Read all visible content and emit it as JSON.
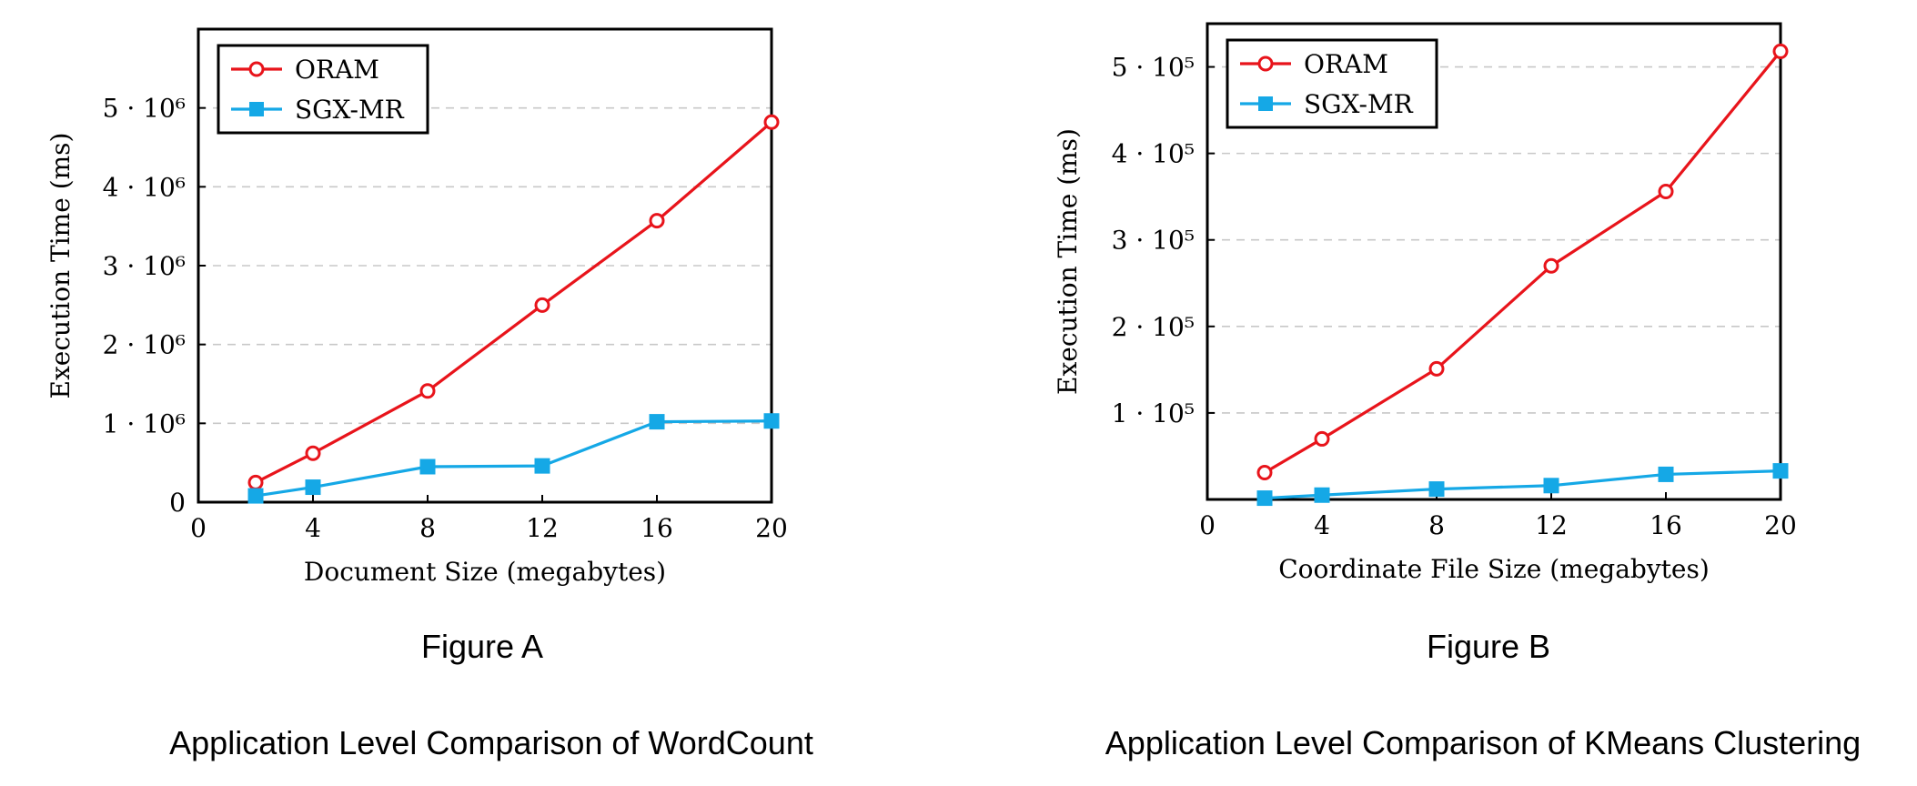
{
  "chart_data": [
    {
      "type": "line",
      "figure_label": "Figure A",
      "caption": "Application Level Comparison of WordCount",
      "xlabel": "Document Size (megabytes)",
      "ylabel": "Execution Time (ms)",
      "x_ticks": [
        "0",
        "4",
        "8",
        "12",
        "16",
        "20"
      ],
      "y_ticks": [
        {
          "value": 0,
          "label": "0"
        },
        {
          "value": 1000000,
          "label": "1 · 10⁶"
        },
        {
          "value": 2000000,
          "label": "2 · 10⁶"
        },
        {
          "value": 3000000,
          "label": "3 · 10⁶"
        },
        {
          "value": 4000000,
          "label": "4 · 10⁶"
        },
        {
          "value": 5000000,
          "label": "5 · 10⁶"
        }
      ],
      "xlim": [
        0,
        20
      ],
      "ylim": [
        0,
        6000000
      ],
      "grid": "horizontal dashed",
      "legend_position": "top-left",
      "x": [
        2,
        4,
        8,
        12,
        16,
        20
      ],
      "series": [
        {
          "name": "ORAM",
          "color": "#e8141b",
          "marker": "circle",
          "values": [
            250000,
            620000,
            1410000,
            2500000,
            3570000,
            4820000
          ]
        },
        {
          "name": "SGX-MR",
          "color": "#15a8e6",
          "marker": "square",
          "values": [
            80000,
            190000,
            450000,
            460000,
            1020000,
            1030000
          ]
        }
      ]
    },
    {
      "type": "line",
      "figure_label": "Figure B",
      "caption": "Application Level Comparison of KMeans Clustering",
      "xlabel": "Coordinate File Size (megabytes)",
      "ylabel": "Execution Time (ms)",
      "x_ticks": [
        "0",
        "4",
        "8",
        "12",
        "16",
        "20"
      ],
      "y_ticks": [
        {
          "value": 100000,
          "label": "1 · 10⁵"
        },
        {
          "value": 200000,
          "label": "2 · 10⁵"
        },
        {
          "value": 300000,
          "label": "3 · 10⁵"
        },
        {
          "value": 400000,
          "label": "4 · 10⁵"
        },
        {
          "value": 500000,
          "label": "5 · 10⁵"
        }
      ],
      "xlim": [
        0,
        20
      ],
      "ylim": [
        0,
        550000
      ],
      "grid": "horizontal dashed",
      "legend_position": "top-left",
      "x": [
        2,
        4,
        8,
        12,
        16,
        20
      ],
      "series": [
        {
          "name": "ORAM",
          "color": "#e8141b",
          "marker": "circle",
          "values": [
            31000,
            70000,
            151000,
            270000,
            356000,
            518000
          ]
        },
        {
          "name": "SGX-MR",
          "color": "#15a8e6",
          "marker": "square",
          "values": [
            1500,
            5000,
            12000,
            16000,
            29000,
            33000
          ]
        }
      ]
    }
  ]
}
